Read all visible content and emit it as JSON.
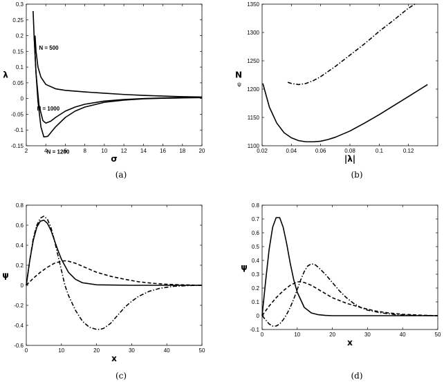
{
  "chart_data": [
    {
      "panel": "a",
      "caption": "(a)",
      "type": "line",
      "xlabel": "σ",
      "ylabel": "λ",
      "xlim": [
        2,
        20
      ],
      "ylim": [
        -0.15,
        0.3
      ],
      "xticks": [
        2,
        4,
        6,
        8,
        10,
        12,
        14,
        16,
        18,
        20
      ],
      "yticks": [
        -0.15,
        -0.1,
        -0.05,
        0,
        0.05,
        0.1,
        0.15,
        0.2,
        0.25,
        0.3
      ],
      "xtick_labels": [
        "2",
        "4",
        "6",
        "8",
        "10",
        "12",
        "14",
        "16",
        "18",
        "20"
      ],
      "ytick_labels": [
        "-0.15",
        "-0.1",
        "-0.05",
        "0",
        "0.05",
        "0.1",
        "0.15",
        "0.2",
        "0.25",
        "0.3"
      ],
      "grid": false,
      "series": [
        {
          "name": "N = 500",
          "style": "solid",
          "x": [
            2.9,
            3.0,
            3.2,
            3.5,
            4.0,
            5.0,
            6.0,
            8.0,
            10.0,
            12.0,
            14.0,
            16.0,
            18.0,
            20.0
          ],
          "y": [
            0.2,
            0.15,
            0.1,
            0.068,
            0.045,
            0.031,
            0.026,
            0.021,
            0.017,
            0.013,
            0.01,
            0.008,
            0.006,
            0.005
          ]
        },
        {
          "name": "N = 1000",
          "style": "solid",
          "x": [
            2.7,
            2.8,
            3.0,
            3.3,
            3.7,
            4.0,
            4.5,
            5.0,
            6.0,
            7.0,
            8.0,
            10.0,
            12.0,
            14.0,
            16.0,
            18.0,
            20.0
          ],
          "y": [
            0.278,
            0.2,
            0.08,
            -0.02,
            -0.07,
            -0.078,
            -0.072,
            -0.06,
            -0.04,
            -0.027,
            -0.018,
            -0.008,
            -0.003,
            0.0,
            0.002,
            0.003,
            0.004
          ]
        },
        {
          "name": "N = 1200",
          "style": "solid",
          "x": [
            2.8,
            2.9,
            3.0,
            3.2,
            3.5,
            3.8,
            4.2,
            4.6,
            5.0,
            6.0,
            7.0,
            8.0,
            10.0,
            12.0,
            14.0,
            16.0,
            18.0,
            20.0
          ],
          "y": [
            0.2,
            0.14,
            0.08,
            -0.01,
            -0.09,
            -0.122,
            -0.12,
            -0.105,
            -0.09,
            -0.06,
            -0.04,
            -0.027,
            -0.012,
            -0.005,
            -0.001,
            0.001,
            0.002,
            0.003
          ]
        }
      ],
      "annotations": [
        {
          "text": "N = 500",
          "x": 3.3,
          "y": 0.155
        },
        {
          "text": "N = 1000",
          "x": 3.1,
          "y": -0.038
        },
        {
          "text": "N = 1200",
          "x": 4.1,
          "y": -0.175
        }
      ]
    },
    {
      "panel": "b",
      "caption": "(b)",
      "type": "line",
      "xlabel": "|λ|",
      "ylabel": "N",
      "ylabel_sub": "ψ",
      "xlim": [
        0.02,
        0.14
      ],
      "ylim": [
        1100,
        1350
      ],
      "xticks": [
        0.02,
        0.04,
        0.06,
        0.08,
        0.1,
        0.12
      ],
      "yticks": [
        1100,
        1150,
        1200,
        1250,
        1300,
        1350
      ],
      "xtick_labels": [
        "0.02",
        "0.04",
        "0.06",
        "0.08",
        "0.1",
        "0.12"
      ],
      "ytick_labels": [
        "1100",
        "1150",
        "1200",
        "1250",
        "1300",
        "1350"
      ],
      "grid": false,
      "series": [
        {
          "style": "solid",
          "x": [
            0.0205,
            0.025,
            0.03,
            0.035,
            0.04,
            0.045,
            0.05,
            0.055,
            0.06,
            0.065,
            0.07,
            0.08,
            0.09,
            0.1,
            0.11,
            0.12,
            0.133
          ],
          "y": [
            1210,
            1168,
            1140,
            1123,
            1114,
            1109,
            1107,
            1107,
            1108,
            1111,
            1115,
            1126,
            1140,
            1155,
            1171,
            1187,
            1208
          ]
        },
        {
          "style": "dashdot",
          "x": [
            0.0375,
            0.04,
            0.045,
            0.05,
            0.055,
            0.06,
            0.07,
            0.08,
            0.09,
            0.1,
            0.11,
            0.12,
            0.125
          ],
          "y": [
            1212,
            1210,
            1208,
            1210,
            1215,
            1222,
            1240,
            1260,
            1280,
            1302,
            1322,
            1343,
            1351
          ]
        }
      ]
    },
    {
      "panel": "c",
      "caption": "(c)",
      "type": "line",
      "xlabel": "x",
      "ylabel": "ψ",
      "xlim": [
        0,
        50
      ],
      "ylim": [
        -0.6,
        0.8
      ],
      "xticks": [
        0,
        10,
        20,
        30,
        40,
        50
      ],
      "yticks": [
        -0.6,
        -0.4,
        -0.2,
        0,
        0.2,
        0.4,
        0.6,
        0.8
      ],
      "xtick_labels": [
        "0",
        "10",
        "20",
        "30",
        "40",
        "50"
      ],
      "ytick_labels": [
        "-0.6",
        "-0.4",
        "-0.2",
        "0",
        "0.2",
        "0.4",
        "0.6",
        "0.8"
      ],
      "grid": false,
      "series": [
        {
          "style": "solid",
          "x": [
            0,
            1,
            2,
            3,
            4,
            5,
            6,
            7,
            8,
            9,
            10,
            12,
            14,
            16,
            20,
            30,
            50
          ],
          "y": [
            0,
            0.25,
            0.45,
            0.58,
            0.64,
            0.65,
            0.62,
            0.55,
            0.45,
            0.35,
            0.26,
            0.13,
            0.06,
            0.025,
            0.005,
            0.0,
            0.0
          ]
        },
        {
          "style": "dashed",
          "x": [
            0,
            2,
            4,
            6,
            8,
            10,
            11,
            12,
            14,
            16,
            18,
            20,
            24,
            28,
            32,
            36,
            40,
            45,
            50
          ],
          "y": [
            0,
            0.07,
            0.13,
            0.18,
            0.22,
            0.24,
            0.245,
            0.24,
            0.22,
            0.19,
            0.16,
            0.13,
            0.09,
            0.06,
            0.035,
            0.02,
            0.01,
            0.004,
            0.0
          ]
        },
        {
          "style": "dashdot",
          "x": [
            0,
            1,
            2,
            3,
            4,
            5,
            6,
            7,
            8,
            9,
            10,
            11,
            12,
            14,
            16,
            18,
            20,
            21,
            22,
            24,
            26,
            28,
            30,
            32,
            35,
            38,
            42,
            46,
            50
          ],
          "y": [
            0,
            0.25,
            0.47,
            0.6,
            0.67,
            0.69,
            0.66,
            0.58,
            0.45,
            0.3,
            0.15,
            0.0,
            -0.1,
            -0.25,
            -0.36,
            -0.42,
            -0.44,
            -0.44,
            -0.43,
            -0.38,
            -0.3,
            -0.22,
            -0.16,
            -0.11,
            -0.06,
            -0.03,
            -0.01,
            -0.003,
            0.0
          ]
        }
      ]
    },
    {
      "panel": "d",
      "caption": "(d)",
      "type": "line",
      "xlabel": "x",
      "ylabel": "ψ",
      "xlim": [
        0,
        50
      ],
      "ylim": [
        -0.1,
        0.8
      ],
      "xticks": [
        0,
        10,
        20,
        30,
        40,
        50
      ],
      "yticks": [
        -0.1,
        0,
        0.1,
        0.2,
        0.3,
        0.4,
        0.5,
        0.6,
        0.7,
        0.8
      ],
      "xtick_labels": [
        "0",
        "10",
        "20",
        "30",
        "40",
        "50"
      ],
      "ytick_labels": [
        "-0.1",
        "0",
        "0.1",
        "0.2",
        "0.3",
        "0.4",
        "0.5",
        "0.6",
        "0.7",
        "0.8"
      ],
      "grid": false,
      "series": [
        {
          "style": "solid",
          "x": [
            0,
            1,
            2,
            3,
            4,
            5,
            6,
            7,
            8,
            9,
            10,
            12,
            14,
            16,
            18,
            20,
            25,
            50
          ],
          "y": [
            0,
            0.25,
            0.48,
            0.64,
            0.71,
            0.71,
            0.64,
            0.52,
            0.38,
            0.26,
            0.17,
            0.06,
            0.02,
            0.007,
            0.002,
            0.0,
            0.0,
            0.0
          ]
        },
        {
          "style": "dashed",
          "x": [
            0,
            2,
            4,
            6,
            8,
            10,
            11,
            12,
            14,
            16,
            18,
            20,
            24,
            28,
            32,
            36,
            40,
            45,
            50
          ],
          "y": [
            0,
            0.07,
            0.13,
            0.18,
            0.22,
            0.245,
            0.245,
            0.24,
            0.22,
            0.19,
            0.16,
            0.13,
            0.09,
            0.06,
            0.035,
            0.02,
            0.01,
            0.004,
            0.0
          ]
        },
        {
          "style": "dashdot",
          "x": [
            0,
            2,
            3,
            4,
            5,
            6,
            7,
            8,
            9,
            10,
            11,
            12,
            13,
            14,
            15,
            16,
            18,
            20,
            22,
            24,
            26,
            28,
            30,
            34,
            38,
            42,
            46,
            50
          ],
          "y": [
            0,
            -0.06,
            -0.075,
            -0.075,
            -0.06,
            -0.03,
            0.01,
            0.06,
            0.12,
            0.19,
            0.26,
            0.32,
            0.36,
            0.375,
            0.37,
            0.35,
            0.3,
            0.24,
            0.18,
            0.13,
            0.09,
            0.06,
            0.04,
            0.02,
            0.008,
            0.003,
            0.001,
            0.0
          ]
        }
      ]
    }
  ]
}
